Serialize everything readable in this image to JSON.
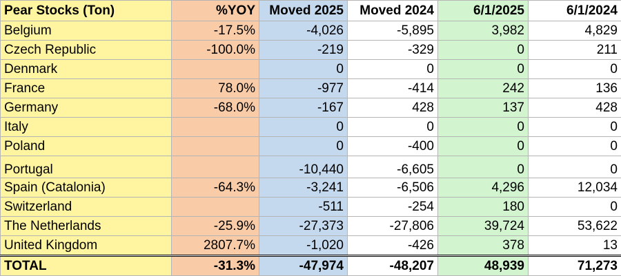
{
  "table": {
    "header": [
      "Pear Stocks (Ton)",
      "%YOY",
      "Moved 2025",
      "Moved 2024",
      "6/1/2025",
      "6/1/2024"
    ],
    "rows": [
      [
        "Belgium",
        "-17.5%",
        "-4,026",
        "-5,895",
        "3,982",
        "4,829"
      ],
      [
        "Czech Republic",
        "-100.0%",
        "-219",
        "-329",
        "0",
        "211"
      ],
      [
        "Denmark",
        null,
        "0",
        "0",
        "0",
        "0"
      ],
      [
        "France",
        "78.0%",
        "-977",
        "-414",
        "242",
        "136"
      ],
      [
        "Germany",
        "-68.0%",
        "-167",
        "428",
        "137",
        "428"
      ],
      [
        "Italy",
        null,
        "0",
        "0",
        "0",
        "0"
      ],
      [
        "Poland",
        null,
        "0",
        "-400",
        "0",
        "0"
      ],
      [
        "Portugal",
        null,
        "-10,440",
        "-6,605",
        "0",
        "0"
      ],
      [
        "Spain (Catalonia)",
        "-64.3%",
        "-3,241",
        "-6,506",
        "4,296",
        "12,034"
      ],
      [
        "Switzerland",
        null,
        "-511",
        "-254",
        "180",
        "0"
      ],
      [
        "The Netherlands",
        "-25.9%",
        "-27,373",
        "-27,806",
        "39,724",
        "53,622"
      ],
      [
        "United Kingdom",
        "2807.7%",
        "-1,020",
        "-426",
        "378",
        "13"
      ]
    ],
    "total": [
      "TOTAL",
      "-31.3%",
      "-47,974",
      "-48,207",
      "48,939",
      "71,273"
    ]
  }
}
